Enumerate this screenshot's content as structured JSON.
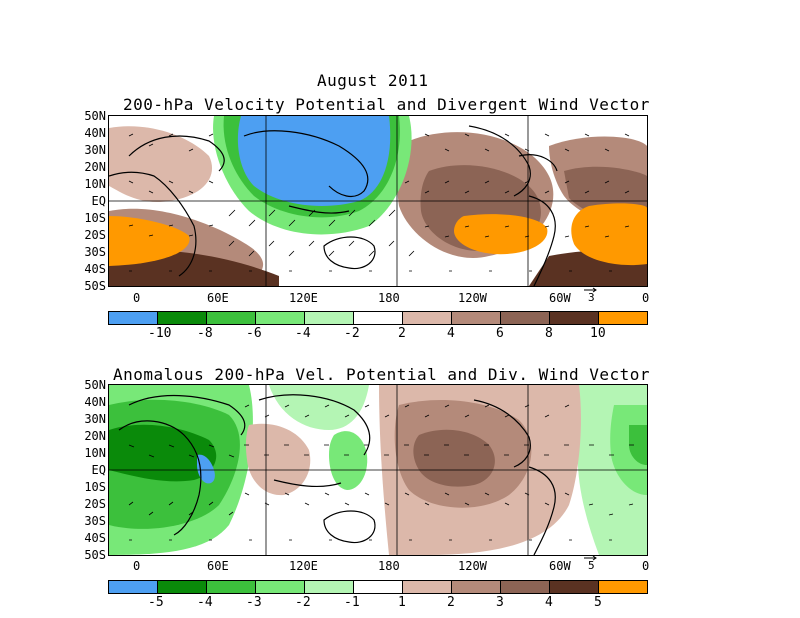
{
  "title": "August 2011",
  "panels": [
    {
      "title": "200-hPa Velocity Potential and Divergent Wind Vector",
      "lat_labels": [
        "50N",
        "40N",
        "30N",
        "20N",
        "10N",
        "EQ",
        "10S",
        "20S",
        "30S",
        "40S",
        "50S"
      ],
      "lon_labels": [
        "0",
        "60E",
        "120E",
        "180",
        "120W",
        "60W",
        "0"
      ],
      "vector_ref": "3",
      "colorbar": {
        "colors": [
          "#4d9ff2",
          "#0a8a0a",
          "#3cc03c",
          "#78e878",
          "#b4f5b4",
          "#ffffff",
          "#dcb8aa",
          "#b48a7a",
          "#8c6455",
          "#5a3222",
          "#ff9900"
        ],
        "labels": [
          "-10",
          "-8",
          "-6",
          "-4",
          "-2",
          "2",
          "4",
          "6",
          "8",
          "10"
        ]
      }
    },
    {
      "title": "Anomalous 200-hPa Vel. Potential and Div. Wind Vector",
      "lat_labels": [
        "50N",
        "40N",
        "30N",
        "20N",
        "10N",
        "EQ",
        "10S",
        "20S",
        "30S",
        "40S",
        "50S"
      ],
      "lon_labels": [
        "0",
        "60E",
        "120E",
        "180",
        "120W",
        "60W",
        "0"
      ],
      "vector_ref": "5",
      "colorbar": {
        "colors": [
          "#4d9ff2",
          "#0a8a0a",
          "#3cc03c",
          "#78e878",
          "#b4f5b4",
          "#ffffff",
          "#dcb8aa",
          "#b48a7a",
          "#8c6455",
          "#5a3222",
          "#ff9900"
        ],
        "labels": [
          "-5",
          "-4",
          "-3",
          "-2",
          "-1",
          "1",
          "2",
          "3",
          "4",
          "5"
        ]
      }
    }
  ]
}
